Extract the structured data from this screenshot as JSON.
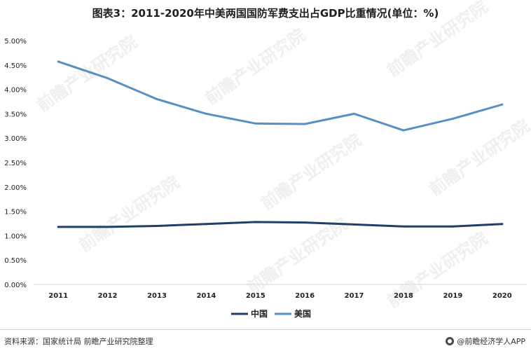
{
  "title": "图表3：2011-2020年中美两国国防军费支出占GDP比重情况(单位：%)",
  "footer": {
    "source": "资料来源：国家统计局 前瞻产业研究院整理",
    "brand": "@前瞻经济学人APP"
  },
  "watermark_text": "前瞻产业研究院",
  "chart_data": {
    "type": "line",
    "title": "图表3：2011-2020年中美两国国防军费支出占GDP比重情况(单位：%)",
    "xlabel": "",
    "ylabel": "",
    "categories": [
      "2011",
      "2012",
      "2013",
      "2014",
      "2015",
      "2016",
      "2017",
      "2018",
      "2019",
      "2020"
    ],
    "ylim": [
      0,
      5
    ],
    "y_ticks": [
      "0.00%",
      "0.50%",
      "1.00%",
      "1.50%",
      "2.00%",
      "2.50%",
      "3.00%",
      "3.50%",
      "4.00%",
      "4.50%",
      "5.00%"
    ],
    "grid": false,
    "legend_position": "bottom",
    "series": [
      {
        "name": "中国",
        "color": "#1f3f66",
        "values": [
          1.18,
          1.18,
          1.2,
          1.24,
          1.28,
          1.27,
          1.23,
          1.19,
          1.19,
          1.24
        ]
      },
      {
        "name": "美国",
        "color": "#5a8fc4",
        "values": [
          4.57,
          4.23,
          3.8,
          3.5,
          3.3,
          3.29,
          3.5,
          3.16,
          3.4,
          3.69
        ]
      }
    ]
  }
}
